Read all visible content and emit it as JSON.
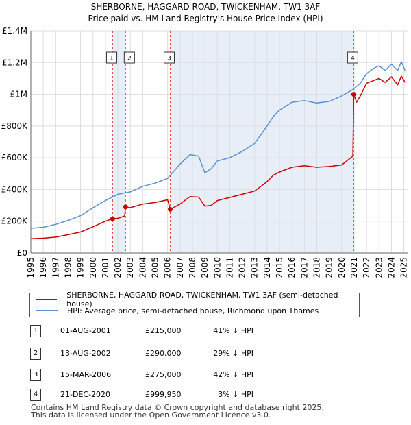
{
  "chart_data": {
    "type": "line",
    "title": "SHERBORNE, HAGGARD ROAD, TWICKENHAM, TW1 3AF",
    "subtitle": "Price paid vs. HM Land Registry's House Price Index (HPI)",
    "xlabel": "",
    "ylabel": "",
    "xlim": [
      1995,
      2025.3
    ],
    "ylim": [
      0,
      1400000
    ],
    "x_ticks": [
      1995,
      1996,
      1997,
      1998,
      1999,
      2000,
      2001,
      2002,
      2003,
      2004,
      2005,
      2006,
      2007,
      2008,
      2009,
      2010,
      2011,
      2012,
      2013,
      2014,
      2015,
      2016,
      2017,
      2018,
      2019,
      2020,
      2021,
      2022,
      2023,
      2024,
      2025
    ],
    "y_ticks": [
      {
        "value": 0,
        "label": "£0"
      },
      {
        "value": 200000,
        "label": "£200K"
      },
      {
        "value": 400000,
        "label": "£400K"
      },
      {
        "value": 600000,
        "label": "£600K"
      },
      {
        "value": 800000,
        "label": "£800K"
      },
      {
        "value": 1000000,
        "label": "£1M"
      },
      {
        "value": 1200000,
        "label": "£1.2M"
      },
      {
        "value": 1400000,
        "label": "£1.4M"
      }
    ],
    "grid": true,
    "shaded_spans": [
      [
        2001.58,
        2002.62
      ],
      [
        2006.21,
        2020.97
      ]
    ],
    "series": [
      {
        "name": "SHERBORNE, HAGGARD ROAD, TWICKENHAM, TW1 3AF (semi-detached house)",
        "color": "#cc0000",
        "points": [
          [
            1995.0,
            90000
          ],
          [
            1996.0,
            93000
          ],
          [
            1997.0,
            100000
          ],
          [
            1998.0,
            115000
          ],
          [
            1999.0,
            132000
          ],
          [
            2000.0,
            165000
          ],
          [
            2001.0,
            200000
          ],
          [
            2001.58,
            215000
          ],
          [
            2002.0,
            218000
          ],
          [
            2002.55,
            233000
          ],
          [
            2002.62,
            290000
          ],
          [
            2003.0,
            285000
          ],
          [
            2004.0,
            308000
          ],
          [
            2005.0,
            318000
          ],
          [
            2006.0,
            335000
          ],
          [
            2006.21,
            275000
          ],
          [
            2007.0,
            308000
          ],
          [
            2007.8,
            355000
          ],
          [
            2008.5,
            352000
          ],
          [
            2009.0,
            295000
          ],
          [
            2009.5,
            300000
          ],
          [
            2010.0,
            330000
          ],
          [
            2011.0,
            350000
          ],
          [
            2012.0,
            370000
          ],
          [
            2013.0,
            390000
          ],
          [
            2014.0,
            450000
          ],
          [
            2014.5,
            490000
          ],
          [
            2015.0,
            510000
          ],
          [
            2016.0,
            540000
          ],
          [
            2017.0,
            550000
          ],
          [
            2018.0,
            540000
          ],
          [
            2019.0,
            545000
          ],
          [
            2020.0,
            555000
          ],
          [
            2020.9,
            610000
          ],
          [
            2020.97,
            999950
          ],
          [
            2021.2,
            950000
          ],
          [
            2021.5,
            990000
          ],
          [
            2022.0,
            1070000
          ],
          [
            2022.5,
            1085000
          ],
          [
            2023.0,
            1100000
          ],
          [
            2023.5,
            1075000
          ],
          [
            2024.0,
            1110000
          ],
          [
            2024.5,
            1060000
          ],
          [
            2024.8,
            1115000
          ],
          [
            2025.1,
            1075000
          ]
        ]
      },
      {
        "name": "HPI: Average price, semi-detached house, Richmond upon Thames",
        "color": "#5b8fd6",
        "points": [
          [
            1995.0,
            155000
          ],
          [
            1996.0,
            162000
          ],
          [
            1997.0,
            180000
          ],
          [
            1998.0,
            205000
          ],
          [
            1999.0,
            235000
          ],
          [
            2000.0,
            285000
          ],
          [
            2001.0,
            330000
          ],
          [
            2002.0,
            370000
          ],
          [
            2003.0,
            385000
          ],
          [
            2004.0,
            420000
          ],
          [
            2005.0,
            440000
          ],
          [
            2006.0,
            470000
          ],
          [
            2007.0,
            560000
          ],
          [
            2007.8,
            620000
          ],
          [
            2008.5,
            610000
          ],
          [
            2009.0,
            505000
          ],
          [
            2009.5,
            530000
          ],
          [
            2010.0,
            580000
          ],
          [
            2011.0,
            600000
          ],
          [
            2012.0,
            640000
          ],
          [
            2013.0,
            690000
          ],
          [
            2014.0,
            800000
          ],
          [
            2014.5,
            860000
          ],
          [
            2015.0,
            900000
          ],
          [
            2016.0,
            950000
          ],
          [
            2017.0,
            960000
          ],
          [
            2018.0,
            945000
          ],
          [
            2019.0,
            955000
          ],
          [
            2020.0,
            990000
          ],
          [
            2020.9,
            1030000
          ],
          [
            2021.5,
            1070000
          ],
          [
            2022.0,
            1130000
          ],
          [
            2022.5,
            1160000
          ],
          [
            2023.0,
            1180000
          ],
          [
            2023.5,
            1150000
          ],
          [
            2024.0,
            1190000
          ],
          [
            2024.5,
            1150000
          ],
          [
            2024.8,
            1205000
          ],
          [
            2025.1,
            1150000
          ]
        ]
      }
    ],
    "sales": [
      {
        "num": "1",
        "x": 2001.58,
        "y": 215000
      },
      {
        "num": "2",
        "x": 2002.62,
        "y": 290000
      },
      {
        "num": "3",
        "x": 2006.21,
        "y": 275000
      },
      {
        "num": "4",
        "x": 2020.97,
        "y": 999950
      }
    ]
  },
  "legend": {
    "property_label": "SHERBORNE, HAGGARD ROAD, TWICKENHAM, TW1 3AF (semi-detached house)",
    "hpi_label": "HPI: Average price, semi-detached house, Richmond upon Thames"
  },
  "transactions": [
    {
      "num": "1",
      "date": "01-AUG-2001",
      "price": "£215,000",
      "hpi": "41% ↓ HPI"
    },
    {
      "num": "2",
      "date": "13-AUG-2002",
      "price": "£290,000",
      "hpi": "29% ↓ HPI"
    },
    {
      "num": "3",
      "date": "15-MAR-2006",
      "price": "£275,000",
      "hpi": "42% ↓ HPI"
    },
    {
      "num": "4",
      "date": "21-DEC-2020",
      "price": "£999,950",
      "hpi": "3% ↓ HPI"
    }
  ],
  "footer": {
    "line1": "Contains HM Land Registry data © Crown copyright and database right 2025.",
    "line2": "This data is licensed under the Open Government Licence v3.0."
  },
  "colors": {
    "property": "#cc0000",
    "hpi": "#5b8fd6",
    "shade": "#e8eef8",
    "grid": "#dddddd"
  }
}
